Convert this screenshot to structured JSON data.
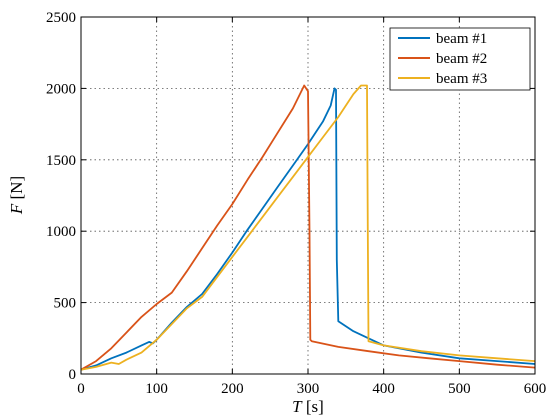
{
  "chart_data": {
    "type": "line",
    "xlabel_var": "T",
    "xlabel_unit": "[s]",
    "ylabel_var": "F",
    "ylabel_unit": "[N]",
    "xlim": [
      0,
      600
    ],
    "ylim": [
      0,
      2500
    ],
    "xticks": [
      0,
      100,
      200,
      300,
      400,
      500,
      600
    ],
    "yticks": [
      0,
      500,
      1000,
      1500,
      2000,
      2500
    ],
    "grid": true,
    "legend_position": "top-right",
    "series": [
      {
        "name": "beam #1",
        "color": "#0072BD",
        "x": [
          0,
          20,
          40,
          60,
          80,
          90,
          95,
          100,
          120,
          140,
          160,
          180,
          200,
          220,
          240,
          260,
          280,
          300,
          320,
          330,
          335,
          337,
          338,
          340,
          360,
          380,
          400,
          450,
          500,
          550,
          600
        ],
        "y": [
          30,
          60,
          110,
          150,
          200,
          225,
          215,
          240,
          360,
          470,
          560,
          700,
          850,
          1010,
          1160,
          1310,
          1460,
          1610,
          1770,
          1880,
          2000,
          1990,
          800,
          370,
          300,
          250,
          200,
          150,
          110,
          90,
          70
        ]
      },
      {
        "name": "beam #2",
        "color": "#D95319",
        "x": [
          0,
          20,
          40,
          60,
          80,
          100,
          120,
          140,
          160,
          180,
          200,
          220,
          240,
          260,
          280,
          295,
          300,
          302,
          303,
          305,
          340,
          380,
          420,
          460,
          500,
          550,
          600
        ],
        "y": [
          30,
          90,
          180,
          290,
          400,
          490,
          570,
          720,
          880,
          1040,
          1190,
          1360,
          1520,
          1690,
          1860,
          2020,
          1980,
          1000,
          240,
          230,
          190,
          160,
          130,
          110,
          90,
          65,
          45
        ]
      },
      {
        "name": "beam #3",
        "color": "#EDB120",
        "x": [
          0,
          20,
          40,
          50,
          60,
          80,
          100,
          120,
          140,
          160,
          180,
          200,
          220,
          240,
          260,
          280,
          300,
          320,
          340,
          360,
          370,
          378,
          379,
          380,
          400,
          450,
          500,
          550,
          600
        ],
        "y": [
          30,
          50,
          80,
          70,
          100,
          150,
          240,
          350,
          460,
          540,
          680,
          820,
          960,
          1100,
          1240,
          1380,
          1520,
          1660,
          1800,
          1960,
          2020,
          2020,
          1000,
          230,
          200,
          160,
          130,
          110,
          90
        ]
      }
    ]
  }
}
